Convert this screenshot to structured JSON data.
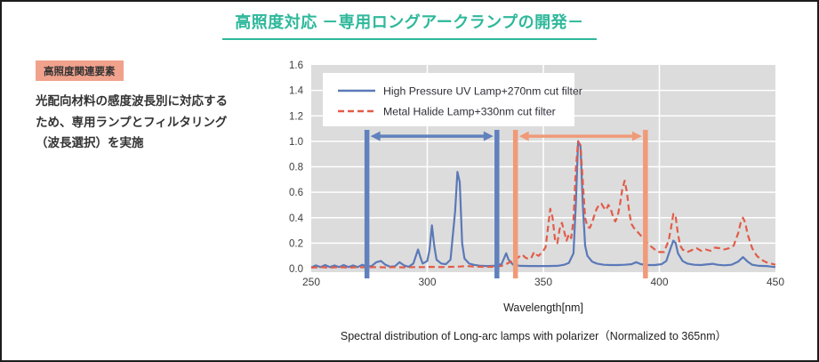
{
  "title": "高照度対応 －専用ロングアークランプの開発－",
  "accent_color": "#2eb89b",
  "side_panel": {
    "badge": "高照度関連要素",
    "badge_bg": "#f1a28c",
    "description": "光配向材料の感度波長別に対応する\nため、専用ランプとフィルタリング\n（波長選択）を実施"
  },
  "caption": "Spectral distribution of Long-arc lamps with polarizer（Normalized to 365nm）",
  "chart_data": {
    "type": "line",
    "xlabel": "Wavelength[nm]",
    "ylabel": "",
    "xlim": [
      250,
      450
    ],
    "ylim": [
      0,
      1.6
    ],
    "x_ticks": [
      250,
      300,
      350,
      400,
      450
    ],
    "y_tick_step": 0.2,
    "grid": true,
    "plot_bg": "#dcdcdc",
    "grid_color": "#ffffff",
    "tick_color": "#3d3d3d",
    "legend_position": "top-left",
    "series": [
      {
        "name": "High Pressure UV Lamp+270nm cut filter",
        "color": "#5b79b8",
        "style": "solid",
        "points": [
          [
            250,
            0.01
          ],
          [
            252,
            0.025
          ],
          [
            254,
            0.012
          ],
          [
            256,
            0.028
          ],
          [
            258,
            0.012
          ],
          [
            260,
            0.025
          ],
          [
            262,
            0.012
          ],
          [
            264,
            0.028
          ],
          [
            266,
            0.012
          ],
          [
            268,
            0.025
          ],
          [
            270,
            0.012
          ],
          [
            272,
            0.03
          ],
          [
            274,
            0.015
          ],
          [
            276,
            0.02
          ],
          [
            278,
            0.05
          ],
          [
            280,
            0.06
          ],
          [
            282,
            0.03
          ],
          [
            284,
            0.015
          ],
          [
            286,
            0.018
          ],
          [
            288,
            0.05
          ],
          [
            290,
            0.025
          ],
          [
            292,
            0.015
          ],
          [
            294,
            0.04
          ],
          [
            296,
            0.15
          ],
          [
            297,
            0.09
          ],
          [
            298,
            0.04
          ],
          [
            300,
            0.06
          ],
          [
            301,
            0.15
          ],
          [
            302,
            0.34
          ],
          [
            303,
            0.18
          ],
          [
            304,
            0.07
          ],
          [
            306,
            0.04
          ],
          [
            308,
            0.035
          ],
          [
            310,
            0.07
          ],
          [
            312,
            0.45
          ],
          [
            313,
            0.76
          ],
          [
            314,
            0.68
          ],
          [
            315,
            0.2
          ],
          [
            316,
            0.08
          ],
          [
            318,
            0.04
          ],
          [
            320,
            0.03
          ],
          [
            323,
            0.022
          ],
          [
            326,
            0.02
          ],
          [
            329,
            0.022
          ],
          [
            332,
            0.035
          ],
          [
            334,
            0.12
          ],
          [
            335,
            0.07
          ],
          [
            337,
            0.03
          ],
          [
            340,
            0.022
          ],
          [
            344,
            0.02
          ],
          [
            348,
            0.02
          ],
          [
            352,
            0.02
          ],
          [
            356,
            0.022
          ],
          [
            359,
            0.03
          ],
          [
            361,
            0.045
          ],
          [
            363,
            0.12
          ],
          [
            364,
            0.5
          ],
          [
            365,
            1.0
          ],
          [
            366,
            0.96
          ],
          [
            367,
            0.5
          ],
          [
            368,
            0.18
          ],
          [
            369,
            0.1
          ],
          [
            371,
            0.055
          ],
          [
            373,
            0.04
          ],
          [
            376,
            0.03
          ],
          [
            379,
            0.028
          ],
          [
            382,
            0.028
          ],
          [
            385,
            0.03
          ],
          [
            388,
            0.035
          ],
          [
            390,
            0.05
          ],
          [
            392,
            0.035
          ],
          [
            395,
            0.028
          ],
          [
            398,
            0.028
          ],
          [
            401,
            0.035
          ],
          [
            403,
            0.06
          ],
          [
            405,
            0.17
          ],
          [
            406,
            0.22
          ],
          [
            407,
            0.2
          ],
          [
            408,
            0.12
          ],
          [
            410,
            0.06
          ],
          [
            412,
            0.04
          ],
          [
            415,
            0.03
          ],
          [
            418,
            0.028
          ],
          [
            420,
            0.032
          ],
          [
            423,
            0.038
          ],
          [
            425,
            0.03
          ],
          [
            428,
            0.026
          ],
          [
            431,
            0.03
          ],
          [
            434,
            0.055
          ],
          [
            436,
            0.09
          ],
          [
            438,
            0.055
          ],
          [
            440,
            0.03
          ],
          [
            443,
            0.022
          ],
          [
            446,
            0.02
          ],
          [
            448,
            0.016
          ],
          [
            450,
            0.012
          ]
        ]
      },
      {
        "name": "Metal Halide Lamp+330nm cut filter",
        "color": "#e25c49",
        "style": "dashed",
        "points": [
          [
            250,
            0.008
          ],
          [
            254,
            0.012
          ],
          [
            258,
            0.008
          ],
          [
            262,
            0.012
          ],
          [
            266,
            0.008
          ],
          [
            270,
            0.012
          ],
          [
            274,
            0.01
          ],
          [
            278,
            0.012
          ],
          [
            282,
            0.01
          ],
          [
            286,
            0.012
          ],
          [
            290,
            0.01
          ],
          [
            294,
            0.012
          ],
          [
            298,
            0.012
          ],
          [
            302,
            0.014
          ],
          [
            306,
            0.012
          ],
          [
            310,
            0.014
          ],
          [
            314,
            0.016
          ],
          [
            317,
            0.02
          ],
          [
            320,
            0.016
          ],
          [
            324,
            0.014
          ],
          [
            327,
            0.014
          ],
          [
            330,
            0.016
          ],
          [
            332,
            0.022
          ],
          [
            334,
            0.035
          ],
          [
            336,
            0.055
          ],
          [
            338,
            0.07
          ],
          [
            340,
            0.1
          ],
          [
            341,
            0.11
          ],
          [
            342,
            0.09
          ],
          [
            343,
            0.08
          ],
          [
            344,
            0.075
          ],
          [
            345,
            0.09
          ],
          [
            346,
            0.13
          ],
          [
            347,
            0.11
          ],
          [
            348,
            0.1
          ],
          [
            349,
            0.12
          ],
          [
            350,
            0.14
          ],
          [
            351,
            0.17
          ],
          [
            352,
            0.32
          ],
          [
            353,
            0.47
          ],
          [
            354,
            0.4
          ],
          [
            355,
            0.23
          ],
          [
            356,
            0.2
          ],
          [
            357,
            0.31
          ],
          [
            358,
            0.36
          ],
          [
            359,
            0.29
          ],
          [
            360,
            0.22
          ],
          [
            361,
            0.27
          ],
          [
            362,
            0.24
          ],
          [
            363,
            0.38
          ],
          [
            364,
            0.78
          ],
          [
            365,
            1.0
          ],
          [
            366,
            0.97
          ],
          [
            367,
            0.68
          ],
          [
            368,
            0.4
          ],
          [
            369,
            0.33
          ],
          [
            370,
            0.32
          ],
          [
            371,
            0.36
          ],
          [
            372,
            0.42
          ],
          [
            373,
            0.47
          ],
          [
            374,
            0.5
          ],
          [
            375,
            0.51
          ],
          [
            376,
            0.48
          ],
          [
            377,
            0.46
          ],
          [
            378,
            0.5
          ],
          [
            379,
            0.47
          ],
          [
            380,
            0.41
          ],
          [
            381,
            0.37
          ],
          [
            382,
            0.41
          ],
          [
            383,
            0.5
          ],
          [
            384,
            0.62
          ],
          [
            385,
            0.69
          ],
          [
            386,
            0.6
          ],
          [
            387,
            0.44
          ],
          [
            388,
            0.35
          ],
          [
            389,
            0.32
          ],
          [
            390,
            0.3
          ],
          [
            391,
            0.28
          ],
          [
            392,
            0.26
          ],
          [
            394,
            0.22
          ],
          [
            396,
            0.18
          ],
          [
            398,
            0.15
          ],
          [
            400,
            0.13
          ],
          [
            402,
            0.13
          ],
          [
            404,
            0.22
          ],
          [
            405,
            0.32
          ],
          [
            406,
            0.43
          ],
          [
            407,
            0.41
          ],
          [
            408,
            0.27
          ],
          [
            409,
            0.18
          ],
          [
            410,
            0.15
          ],
          [
            412,
            0.13
          ],
          [
            414,
            0.145
          ],
          [
            416,
            0.16
          ],
          [
            418,
            0.14
          ],
          [
            420,
            0.15
          ],
          [
            422,
            0.14
          ],
          [
            424,
            0.165
          ],
          [
            426,
            0.16
          ],
          [
            428,
            0.15
          ],
          [
            430,
            0.16
          ],
          [
            432,
            0.18
          ],
          [
            434,
            0.28
          ],
          [
            435,
            0.36
          ],
          [
            436,
            0.4
          ],
          [
            437,
            0.36
          ],
          [
            438,
            0.27
          ],
          [
            440,
            0.16
          ],
          [
            442,
            0.1
          ],
          [
            444,
            0.07
          ],
          [
            446,
            0.05
          ],
          [
            448,
            0.04
          ],
          [
            450,
            0.03
          ]
        ]
      }
    ],
    "annotations": [
      {
        "type": "band-arrow",
        "name": "uv-lamp-filter-range",
        "from": 274,
        "to": 330,
        "color": "#6081bd",
        "arrow_y": 1.04
      },
      {
        "type": "band-arrow",
        "name": "metal-halide-filter-range",
        "from": 338,
        "to": 394,
        "color": "#f09a78",
        "arrow_y": 1.04
      }
    ]
  }
}
